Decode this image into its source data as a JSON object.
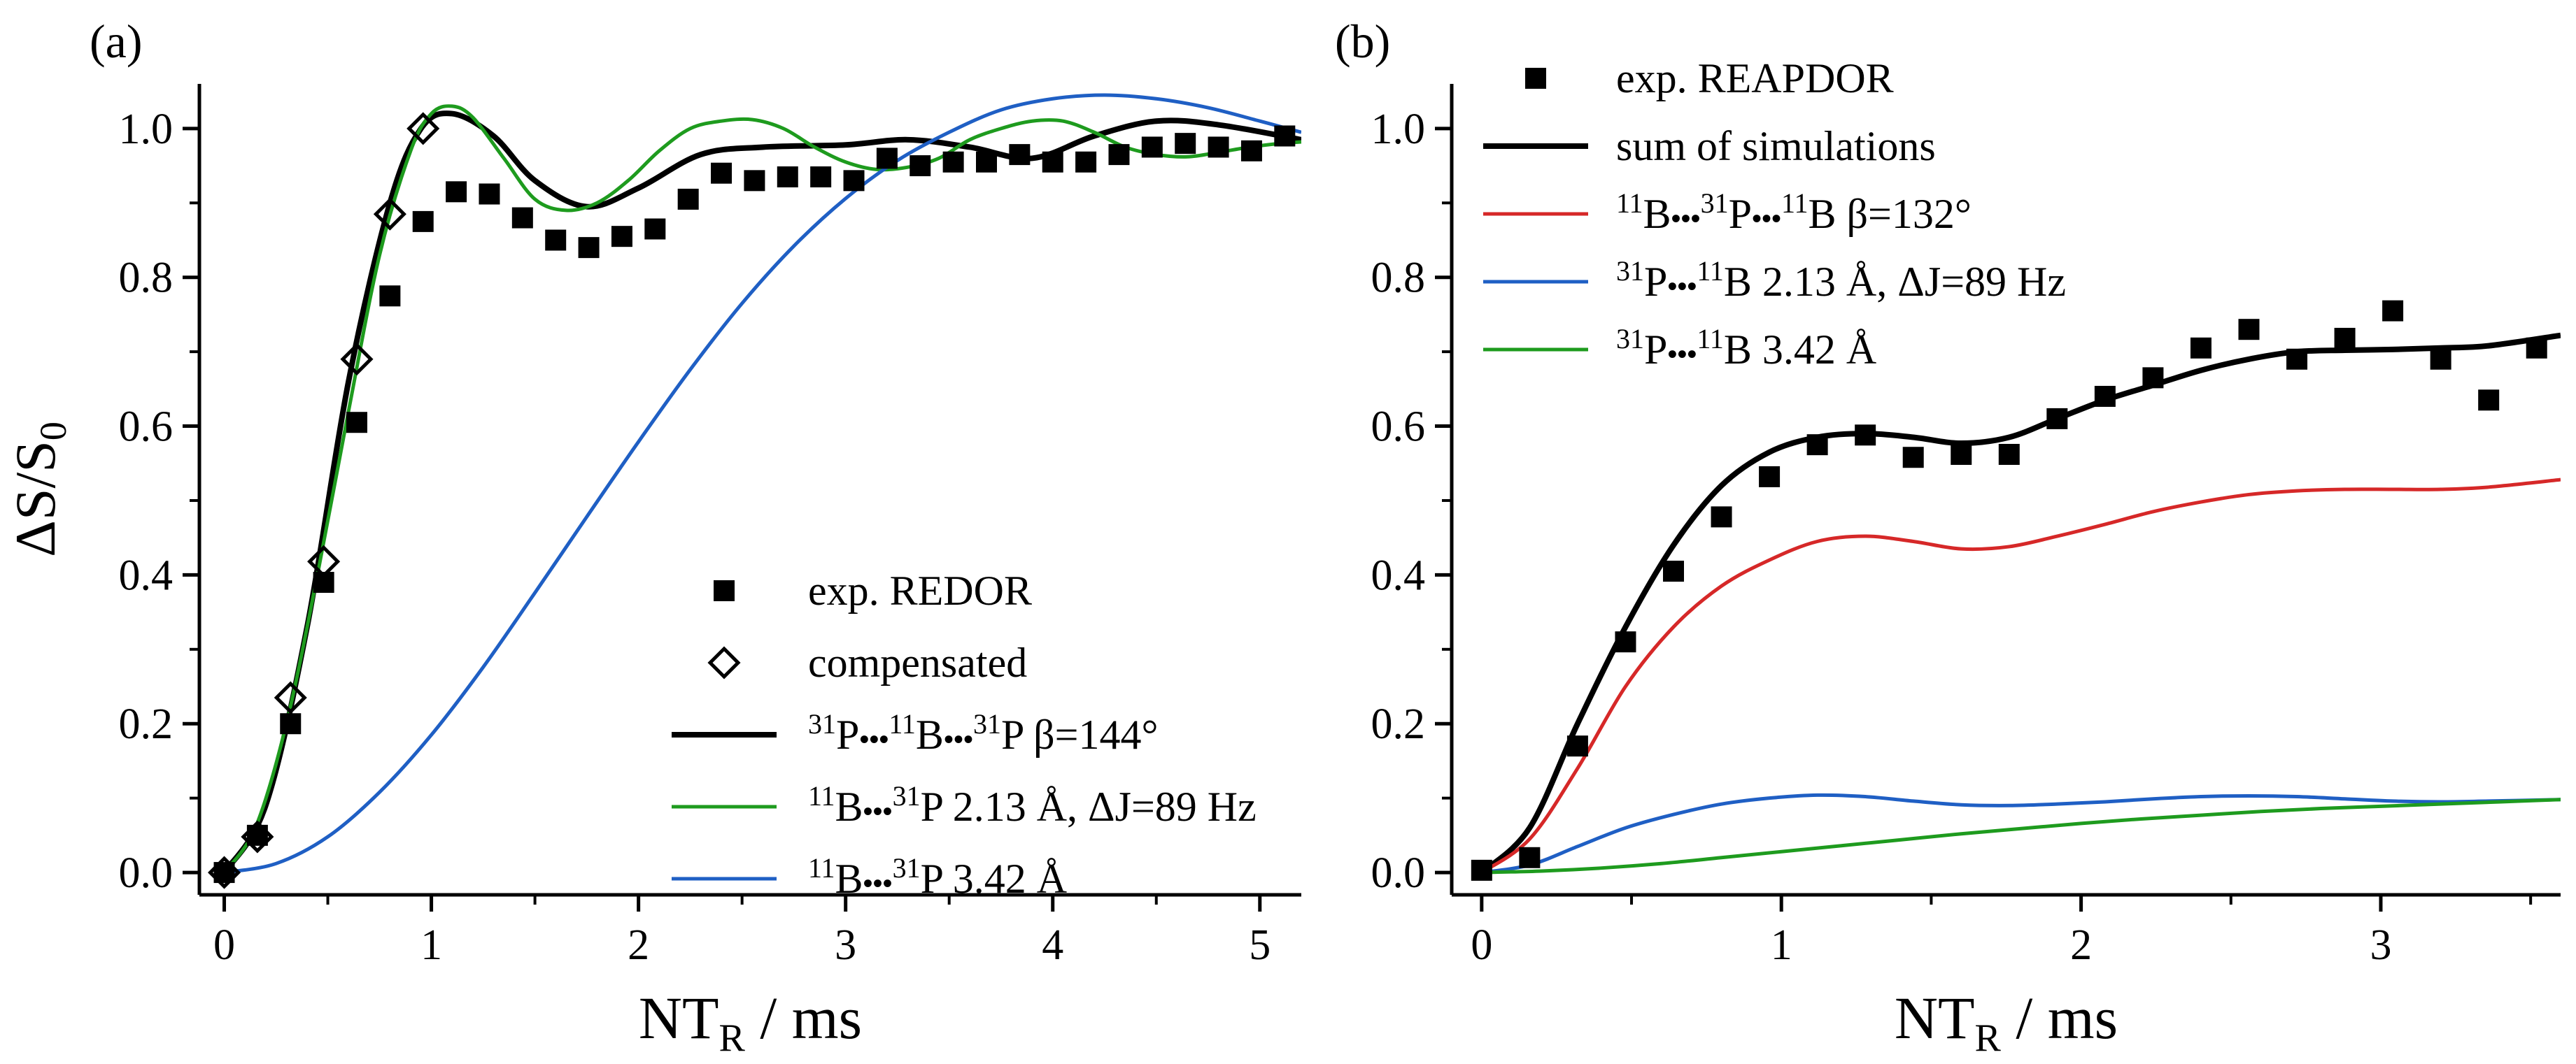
{
  "chart_data": [
    {
      "panel_label": "(a)",
      "type": "scatter",
      "ylabel_main": "ΔS/S",
      "ylabel_sub": "0",
      "xlabel_main": "NT",
      "xlabel_sub": "R",
      "xlabel_tail": " / ms",
      "xlim": [
        -0.12,
        5.2
      ],
      "ylim": [
        -0.03,
        1.06
      ],
      "xticks": [
        0,
        1,
        2,
        3,
        4,
        5
      ],
      "xtick_labels": [
        "0",
        "1",
        "2",
        "3",
        "4",
        "5"
      ],
      "yticks": [
        0,
        0.2,
        0.4,
        0.6,
        0.8,
        1.0
      ],
      "ytick_labels": [
        "0.0",
        "0.2",
        "0.4",
        "0.6",
        "0.8",
        "1.0"
      ],
      "legend_position": "lower-right",
      "series": [
        {
          "name": "exp. REDOR",
          "kind": "marker",
          "marker": "square",
          "color": "#000000",
          "legend": [
            {
              "t": "exp. REDOR"
            }
          ],
          "x": [
            0,
            0.16,
            0.32,
            0.48,
            0.64,
            0.8,
            0.96,
            1.12,
            1.28,
            1.44,
            1.6,
            1.76,
            1.92,
            2.08,
            2.24,
            2.4,
            2.56,
            2.72,
            2.88,
            3.04,
            3.2,
            3.36,
            3.52,
            3.68,
            3.84,
            4.0,
            4.16,
            4.32,
            4.48,
            4.64,
            4.8,
            4.96,
            5.12
          ],
          "y": [
            0.0,
            0.05,
            0.2,
            0.39,
            0.605,
            0.775,
            0.875,
            0.915,
            0.912,
            0.88,
            0.85,
            0.84,
            0.855,
            0.865,
            0.905,
            0.94,
            0.93,
            0.935,
            0.935,
            0.93,
            0.96,
            0.95,
            0.955,
            0.955,
            0.965,
            0.955,
            0.955,
            0.965,
            0.975,
            0.98,
            0.975,
            0.97,
            0.99
          ]
        },
        {
          "name": "compensated",
          "kind": "marker",
          "marker": "diamond",
          "color": "#000000",
          "legend": [
            {
              "t": "compensated"
            }
          ],
          "x": [
            0,
            0.16,
            0.32,
            0.48,
            0.64,
            0.8,
            0.96
          ],
          "y": [
            0.0,
            0.048,
            0.235,
            0.418,
            0.69,
            0.885,
            1.0
          ]
        },
        {
          "name": "31P•••11B•••31P β=144°",
          "kind": "line",
          "color": "#000000",
          "width": 8,
          "legend": [
            {
              "t": "31",
              "sup": true
            },
            {
              "t": "P"
            },
            {
              "t": "•••",
              "bold": true
            },
            {
              "t": "11",
              "sup": true
            },
            {
              "t": "B"
            },
            {
              "t": "•••",
              "bold": true
            },
            {
              "t": "31",
              "sup": true
            },
            {
              "t": "P  β=144°"
            }
          ],
          "x": [
            0,
            0.2,
            0.4,
            0.6,
            0.8,
            0.95,
            1.1,
            1.3,
            1.5,
            1.75,
            2.0,
            2.3,
            2.6,
            3.0,
            3.3,
            3.6,
            3.9,
            4.2,
            4.5,
            4.8,
            5.2
          ],
          "y": [
            0,
            0.09,
            0.33,
            0.66,
            0.9,
            1.0,
            1.02,
            0.99,
            0.93,
            0.895,
            0.92,
            0.965,
            0.975,
            0.978,
            0.985,
            0.975,
            0.96,
            0.99,
            1.01,
            1.005,
            0.985
          ]
        },
        {
          "name": "11B•••31P 2.13 Å, ΔJ=89 Hz",
          "kind": "line",
          "color": "#1e9b1e",
          "width": 5,
          "legend": [
            {
              "t": "11",
              "sup": true
            },
            {
              "t": "B"
            },
            {
              "t": "•••",
              "bold": true
            },
            {
              "t": "31",
              "sup": true
            },
            {
              "t": "P  2.13 Å, ΔJ=89 Hz"
            }
          ],
          "x": [
            0,
            0.15,
            0.3,
            0.45,
            0.6,
            0.75,
            0.9,
            1.0,
            1.1,
            1.2,
            1.35,
            1.5,
            1.65,
            1.8,
            1.95,
            2.1,
            2.25,
            2.4,
            2.55,
            2.7,
            2.85,
            3.0,
            3.15,
            3.3,
            3.45,
            3.6,
            3.75,
            3.9,
            4.05,
            4.2,
            4.35,
            4.5,
            4.65,
            4.8,
            4.95,
            5.1,
            5.2
          ],
          "y": [
            0,
            0.06,
            0.2,
            0.4,
            0.62,
            0.83,
            0.97,
            1.02,
            1.03,
            1.015,
            0.96,
            0.905,
            0.89,
            0.9,
            0.93,
            0.97,
            1.0,
            1.01,
            1.012,
            1.0,
            0.975,
            0.955,
            0.945,
            0.948,
            0.96,
            0.985,
            1.0,
            1.01,
            1.01,
            0.995,
            0.975,
            0.965,
            0.962,
            0.968,
            0.975,
            0.98,
            0.982
          ]
        },
        {
          "name": "11B•••31P 3.42 Å",
          "kind": "line",
          "color": "#1f5fc4",
          "width": 5,
          "legend": [
            {
              "t": "11",
              "sup": true
            },
            {
              "t": "B"
            },
            {
              "t": "•••",
              "bold": true
            },
            {
              "t": "31",
              "sup": true
            },
            {
              "t": "P  3.42 Å"
            }
          ],
          "x": [
            0,
            0.25,
            0.5,
            0.75,
            1.0,
            1.25,
            1.5,
            1.75,
            2.0,
            2.25,
            2.5,
            2.75,
            3.0,
            3.25,
            3.5,
            3.75,
            4.0,
            4.25,
            4.5,
            4.75,
            5.0,
            5.2
          ],
          "y": [
            0,
            0.012,
            0.048,
            0.108,
            0.185,
            0.276,
            0.376,
            0.478,
            0.579,
            0.676,
            0.765,
            0.842,
            0.906,
            0.957,
            0.995,
            1.025,
            1.04,
            1.045,
            1.04,
            1.028,
            1.01,
            0.995
          ]
        }
      ]
    },
    {
      "panel_label": "(b)",
      "type": "scatter",
      "ylabel_main": "",
      "ylabel_sub": "",
      "xlabel_main": "NT",
      "xlabel_sub": "R",
      "xlabel_tail": " / ms",
      "xlim": [
        -0.1,
        3.6
      ],
      "ylim": [
        -0.03,
        1.06
      ],
      "xticks": [
        0,
        1,
        2,
        3
      ],
      "xtick_labels": [
        "0",
        "1",
        "2",
        "3"
      ],
      "yticks": [
        0,
        0.2,
        0.4,
        0.6,
        0.8,
        1.0
      ],
      "ytick_labels": [
        "0.0",
        "0.2",
        "0.4",
        "0.6",
        "0.8",
        "1.0"
      ],
      "legend_position": "top-left",
      "series": [
        {
          "name": "exp. REAPDOR",
          "kind": "marker",
          "marker": "square",
          "color": "#000000",
          "legend": [
            {
              "t": "exp. REAPDOR"
            }
          ],
          "x": [
            0,
            0.16,
            0.32,
            0.48,
            0.64,
            0.8,
            0.96,
            1.12,
            1.28,
            1.44,
            1.6,
            1.76,
            1.92,
            2.08,
            2.24,
            2.4,
            2.56,
            2.72,
            2.88,
            3.04,
            3.2,
            3.36,
            3.52
          ],
          "y": [
            0.003,
            0.02,
            0.17,
            0.31,
            0.405,
            0.478,
            0.532,
            0.575,
            0.588,
            0.558,
            0.562,
            0.562,
            0.61,
            0.64,
            0.665,
            0.705,
            0.73,
            0.69,
            0.718,
            0.755,
            0.69,
            0.635,
            0.705
          ]
        },
        {
          "name": "sum of simulations",
          "kind": "line",
          "color": "#000000",
          "width": 8,
          "legend": [
            {
              "t": "sum of simulations"
            }
          ],
          "x": [
            0,
            0.16,
            0.32,
            0.48,
            0.64,
            0.8,
            0.96,
            1.12,
            1.28,
            1.44,
            1.6,
            1.76,
            1.92,
            2.08,
            2.24,
            2.4,
            2.56,
            2.72,
            2.88,
            3.04,
            3.2,
            3.36,
            3.6
          ],
          "y": [
            0,
            0.06,
            0.2,
            0.33,
            0.44,
            0.52,
            0.565,
            0.585,
            0.59,
            0.585,
            0.577,
            0.585,
            0.61,
            0.635,
            0.655,
            0.675,
            0.69,
            0.7,
            0.702,
            0.703,
            0.705,
            0.708,
            0.722
          ]
        },
        {
          "name": "11B•••31P•••11B β=132°",
          "kind": "line",
          "color": "#d62828",
          "width": 5,
          "legend": [
            {
              "t": "11",
              "sup": true
            },
            {
              "t": "B"
            },
            {
              "t": "•••",
              "bold": true
            },
            {
              "t": "31",
              "sup": true
            },
            {
              "t": "P"
            },
            {
              "t": "•••",
              "bold": true
            },
            {
              "t": "11",
              "sup": true
            },
            {
              "t": "B  β=132°"
            }
          ],
          "x": [
            0,
            0.16,
            0.32,
            0.48,
            0.64,
            0.8,
            0.96,
            1.12,
            1.28,
            1.44,
            1.6,
            1.76,
            1.92,
            2.08,
            2.24,
            2.4,
            2.56,
            2.72,
            2.88,
            3.04,
            3.2,
            3.36,
            3.6
          ],
          "y": [
            0,
            0.045,
            0.14,
            0.25,
            0.33,
            0.385,
            0.42,
            0.445,
            0.452,
            0.445,
            0.435,
            0.438,
            0.452,
            0.468,
            0.485,
            0.498,
            0.508,
            0.513,
            0.515,
            0.515,
            0.515,
            0.518,
            0.528
          ]
        },
        {
          "name": "31P•••11B 2.13 Å, ΔJ=89 Hz",
          "kind": "line",
          "color": "#1f5fc4",
          "width": 5,
          "legend": [
            {
              "t": "31",
              "sup": true
            },
            {
              "t": "P"
            },
            {
              "t": "•••",
              "bold": true
            },
            {
              "t": "11",
              "sup": true
            },
            {
              "t": "B   2.13 Å,  ΔJ=89 Hz"
            }
          ],
          "x": [
            0,
            0.16,
            0.32,
            0.48,
            0.64,
            0.8,
            0.96,
            1.12,
            1.28,
            1.44,
            1.6,
            1.76,
            1.92,
            2.08,
            2.24,
            2.4,
            2.56,
            2.72,
            2.88,
            3.04,
            3.2,
            3.36,
            3.6
          ],
          "y": [
            0,
            0.01,
            0.035,
            0.06,
            0.078,
            0.092,
            0.1,
            0.104,
            0.102,
            0.096,
            0.091,
            0.09,
            0.092,
            0.095,
            0.099,
            0.102,
            0.103,
            0.102,
            0.099,
            0.096,
            0.095,
            0.096,
            0.098
          ]
        },
        {
          "name": "31P•••11B 3.42 Å",
          "kind": "line",
          "color": "#1e9b1e",
          "width": 5,
          "legend": [
            {
              "t": "31",
              "sup": true
            },
            {
              "t": "P"
            },
            {
              "t": "•••",
              "bold": true
            },
            {
              "t": "11",
              "sup": true
            },
            {
              "t": "B   3.42 Å"
            }
          ],
          "x": [
            0,
            0.2,
            0.4,
            0.6,
            0.8,
            1.0,
            1.2,
            1.4,
            1.6,
            1.8,
            2.0,
            2.2,
            2.4,
            2.6,
            2.8,
            3.0,
            3.2,
            3.4,
            3.6
          ],
          "y": [
            0,
            0.002,
            0.006,
            0.012,
            0.02,
            0.028,
            0.036,
            0.044,
            0.052,
            0.059,
            0.066,
            0.072,
            0.077,
            0.082,
            0.086,
            0.089,
            0.092,
            0.095,
            0.098
          ]
        }
      ]
    }
  ]
}
